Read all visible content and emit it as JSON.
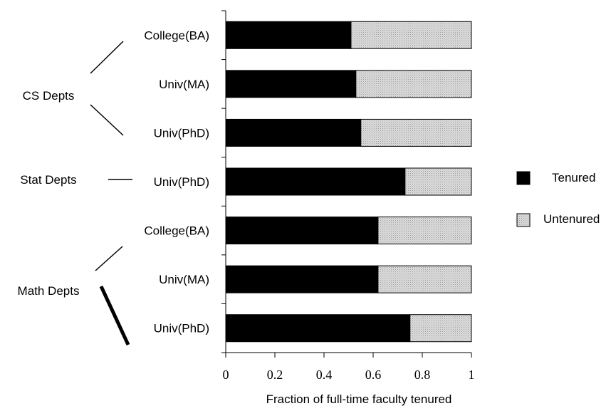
{
  "chart_data": {
    "type": "bar",
    "stacked": true,
    "orientation": "horizontal",
    "categories": [
      "College(BA)",
      "Univ(MA)",
      "Univ(PhD)",
      "Univ(PhD)",
      "College(BA)",
      "Univ(MA)",
      "Univ(PhD)"
    ],
    "groups": [
      {
        "label": "CS Depts",
        "categories": [
          0,
          1,
          2
        ]
      },
      {
        "label": "Stat Depts",
        "categories": [
          3
        ]
      },
      {
        "label": "Math Depts",
        "categories": [
          4,
          5,
          6
        ]
      }
    ],
    "series": [
      {
        "name": "Tenured",
        "color": "#000000",
        "values": [
          0.51,
          0.53,
          0.55,
          0.73,
          0.62,
          0.62,
          0.75
        ]
      },
      {
        "name": "Untenured",
        "color": "#dcdcdc",
        "values": [
          0.49,
          0.47,
          0.45,
          0.27,
          0.38,
          0.38,
          0.25
        ]
      }
    ],
    "xlabel": "Fraction of full-time faculty tenured",
    "xlim": [
      0,
      1
    ],
    "xticks": [
      "0",
      "0.2",
      "0.4",
      "0.6",
      "0.8",
      "1"
    ],
    "legend_position": "right",
    "grid": false
  }
}
